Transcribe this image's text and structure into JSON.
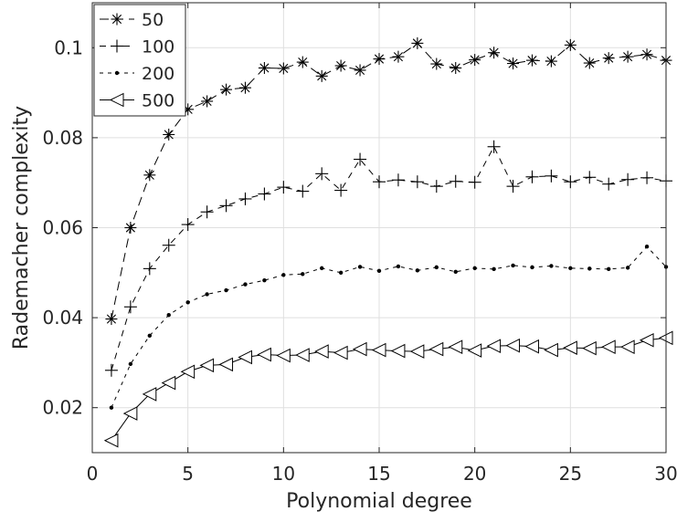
{
  "chart_data": {
    "type": "line",
    "title": "",
    "xlabel": "Polynomial degree",
    "ylabel": "Rademacher complexity",
    "xlim": [
      0,
      30
    ],
    "ylim": [
      0.01,
      0.11
    ],
    "xticks": [
      0,
      5,
      10,
      15,
      20,
      25,
      30
    ],
    "xtick_labels": [
      "0",
      "5",
      "10",
      "15",
      "20",
      "25",
      "30"
    ],
    "yticks": [
      0.02,
      0.04,
      0.06,
      0.08,
      0.1
    ],
    "ytick_labels": [
      "0.02",
      "0.04",
      "0.06",
      "0.08",
      "0.1"
    ],
    "grid": true,
    "legend_position": "top-left",
    "x": [
      1,
      2,
      3,
      4,
      5,
      6,
      7,
      8,
      9,
      10,
      11,
      12,
      13,
      14,
      15,
      16,
      17,
      18,
      19,
      20,
      21,
      22,
      23,
      24,
      25,
      26,
      27,
      28,
      29,
      30
    ],
    "series": [
      {
        "name": "50",
        "marker": "asterisk",
        "line_style": "long-dash",
        "values": [
          0.0397,
          0.06,
          0.0717,
          0.0807,
          0.0863,
          0.0881,
          0.0907,
          0.0911,
          0.0955,
          0.0954,
          0.0968,
          0.0937,
          0.096,
          0.095,
          0.0975,
          0.098,
          0.101,
          0.0964,
          0.0955,
          0.0973,
          0.0989,
          0.0965,
          0.0972,
          0.097,
          0.1006,
          0.0966,
          0.0977,
          0.098,
          0.0985,
          0.0972
        ]
      },
      {
        "name": "100",
        "marker": "plus",
        "line_style": "dash",
        "values": [
          0.0283,
          0.0424,
          0.0509,
          0.0561,
          0.0607,
          0.0635,
          0.0649,
          0.0664,
          0.0675,
          0.069,
          0.0681,
          0.072,
          0.0683,
          0.0752,
          0.0702,
          0.0706,
          0.0702,
          0.0692,
          0.0703,
          0.0701,
          0.078,
          0.0692,
          0.0713,
          0.0715,
          0.0702,
          0.0712,
          0.0697,
          0.0707,
          0.0711,
          0.0704
        ]
      },
      {
        "name": "200",
        "marker": "dot",
        "line_style": "short-dash",
        "values": [
          0.02,
          0.0297,
          0.036,
          0.0406,
          0.0434,
          0.0452,
          0.0461,
          0.0474,
          0.0483,
          0.0495,
          0.0497,
          0.051,
          0.05,
          0.0513,
          0.0504,
          0.0514,
          0.0505,
          0.0512,
          0.0502,
          0.051,
          0.0508,
          0.0516,
          0.0512,
          0.0515,
          0.051,
          0.0509,
          0.0508,
          0.0511,
          0.0558,
          0.0513
        ]
      },
      {
        "name": "500",
        "marker": "triangle-left",
        "line_style": "solid",
        "values": [
          0.0127,
          0.0187,
          0.023,
          0.0255,
          0.028,
          0.0294,
          0.0296,
          0.0312,
          0.0318,
          0.0316,
          0.0317,
          0.0325,
          0.0322,
          0.033,
          0.0328,
          0.0326,
          0.0325,
          0.033,
          0.0335,
          0.0327,
          0.0337,
          0.0338,
          0.0336,
          0.0328,
          0.0333,
          0.0332,
          0.0335,
          0.0335,
          0.035,
          0.0355
        ]
      }
    ],
    "colors": {
      "line": "#000000",
      "grid": "#dfdfdf",
      "axis": "#262626",
      "background": "#ffffff"
    }
  }
}
